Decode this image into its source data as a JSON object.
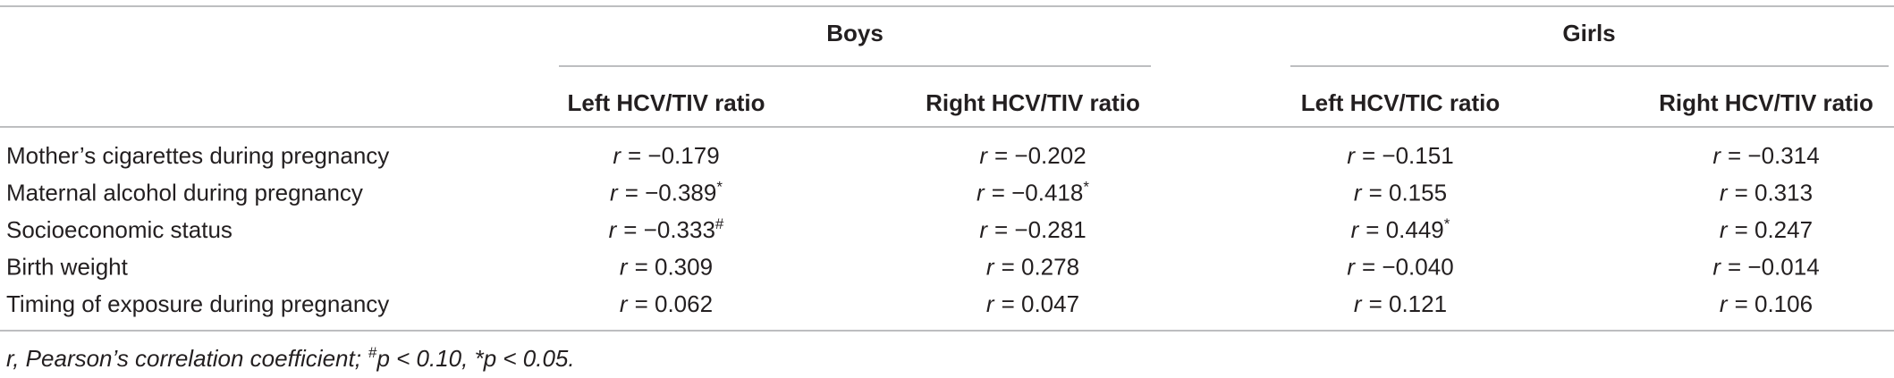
{
  "table": {
    "groups": [
      "Boys",
      "Girls"
    ],
    "columns": [
      "Left HCV/TIV ratio",
      "Right HCV/TIV ratio",
      "Left HCV/TIC ratio",
      "Right HCV/TIV ratio"
    ],
    "rows": [
      {
        "label": "Mother’s cigarettes during pregnancy",
        "cells": [
          {
            "symbol": "r",
            "value": "= −0.179"
          },
          {
            "symbol": "r",
            "value": "= −0.202"
          },
          {
            "symbol": "r",
            "value": "= −0.151"
          },
          {
            "symbol": "r",
            "value": "= −0.314"
          }
        ]
      },
      {
        "label": "Maternal alcohol during pregnancy",
        "cells": [
          {
            "symbol": "r",
            "value": "= −0.389",
            "note": "*"
          },
          {
            "symbol": "r",
            "value": "= −0.418",
            "note": "*"
          },
          {
            "symbol": "r",
            "value": "= 0.155"
          },
          {
            "symbol": "r",
            "value": "= 0.313"
          }
        ]
      },
      {
        "label": "Socioeconomic status",
        "cells": [
          {
            "symbol": "r",
            "value": "= −0.333",
            "note": "#"
          },
          {
            "symbol": "r",
            "value": "= −0.281"
          },
          {
            "symbol": "r",
            "value": "= 0.449",
            "note": "*"
          },
          {
            "symbol": "r",
            "value": "= 0.247"
          }
        ]
      },
      {
        "label": "Birth weight",
        "cells": [
          {
            "symbol": "r",
            "value": "= 0.309"
          },
          {
            "symbol": "r",
            "value": "= 0.278"
          },
          {
            "symbol": "r",
            "value": "= −0.040"
          },
          {
            "symbol": "r",
            "value": "= −0.014"
          }
        ]
      },
      {
        "label": "Timing of exposure during pregnancy",
        "cells": [
          {
            "symbol": "r",
            "value": "= 0.062"
          },
          {
            "symbol": "r",
            "value": "= 0.047"
          },
          {
            "symbol": "r",
            "value": "= 0.121"
          },
          {
            "symbol": "r",
            "value": "= 0.106"
          }
        ]
      }
    ]
  },
  "footnote": {
    "symbol": "r",
    "text": ", Pearson’s correlation coefficient;",
    "sup": "#",
    "text2": "p < 0.10, *p < 0.05."
  }
}
